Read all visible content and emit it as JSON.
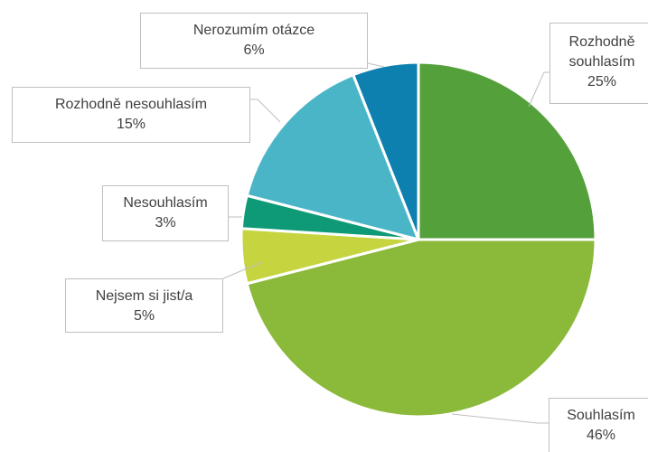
{
  "chart_data": {
    "type": "pie",
    "categories": [
      "Rozhodně souhlasím",
      "Souhlasím",
      "Nejsem si jist/a",
      "Nesouhlasím",
      "Rozhodně nesouhlasím",
      "Nerozumím otázce"
    ],
    "values": [
      25,
      46,
      5,
      3,
      15,
      6
    ],
    "value_labels": [
      "25%",
      "46%",
      "5%",
      "3%",
      "15%",
      "6%"
    ],
    "colors": [
      "#54a03a",
      "#8bb93a",
      "#c5d43f",
      "#0f9a77",
      "#4bb5c8",
      "#0e80b0"
    ]
  }
}
